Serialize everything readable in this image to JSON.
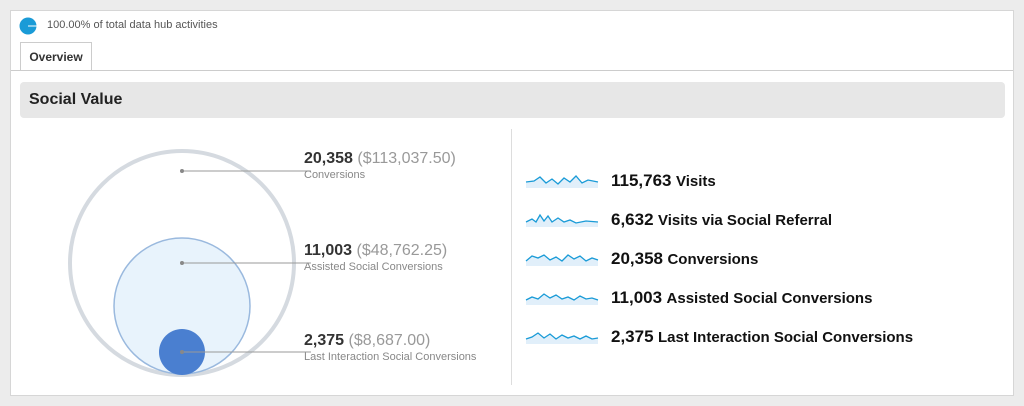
{
  "header": {
    "text": "100.00% of total data hub activities"
  },
  "tabs": [
    "Overview"
  ],
  "section": {
    "title": "Social Value"
  },
  "circles": [
    {
      "value": "20,358",
      "amount": "($113,037.50)",
      "label": "Conversions"
    },
    {
      "value": "11,003",
      "amount": "($48,762.25)",
      "label": "Assisted Social Conversions"
    },
    {
      "value": "2,375",
      "amount": "($8,687.00)",
      "label": "Last Interaction Social Conversions"
    }
  ],
  "metrics": [
    {
      "value": "115,763",
      "label": "Visits"
    },
    {
      "value": "6,632",
      "label": "Visits via Social Referral"
    },
    {
      "value": "20,358",
      "label": "Conversions"
    },
    {
      "value": "11,003",
      "label": "Assisted Social Conversions"
    },
    {
      "value": "2,375",
      "label": "Last Interaction Social Conversions"
    }
  ]
}
